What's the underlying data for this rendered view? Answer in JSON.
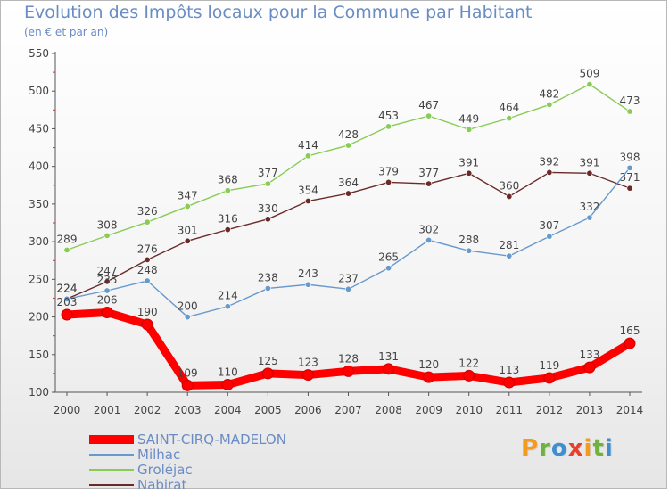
{
  "title": "Evolution des Impôts locaux pour la Commune par Habitant",
  "subtitle": "(en € et par an)",
  "chart_data": {
    "type": "line",
    "title": "Evolution des Impôts locaux pour la Commune par Habitant",
    "subtitle": "(en € et par an)",
    "x": [
      "2000",
      "2001",
      "2002",
      "2003",
      "2004",
      "2005",
      "2006",
      "2007",
      "2008",
      "2009",
      "2010",
      "2011",
      "2012",
      "2013",
      "2014"
    ],
    "ylim": [
      100,
      550
    ],
    "yticks": [
      100,
      150,
      200,
      250,
      300,
      350,
      400,
      450,
      500,
      550
    ],
    "grid": false,
    "legend": "bottom-left",
    "series": [
      {
        "name": "SAINT-CIRQ-MADELON",
        "color": "#ff0000",
        "values": [
          203,
          206,
          190,
          109,
          110,
          125,
          123,
          128,
          131,
          120,
          122,
          113,
          119,
          133,
          165
        ]
      },
      {
        "name": "Milhac",
        "color": "#6699cc",
        "values": [
          224,
          235,
          248,
          200,
          214,
          238,
          243,
          237,
          265,
          302,
          288,
          281,
          307,
          332,
          398
        ]
      },
      {
        "name": "Groléjac",
        "color": "#88cc55",
        "values": [
          289,
          308,
          326,
          347,
          368,
          377,
          414,
          428,
          453,
          467,
          449,
          464,
          482,
          509,
          473
        ]
      },
      {
        "name": "Nabirat",
        "color": "#6b2a2a",
        "values": [
          224,
          247,
          276,
          301,
          316,
          330,
          354,
          364,
          379,
          377,
          391,
          360,
          392,
          391,
          371
        ]
      }
    ]
  },
  "logo": {
    "text": "Proxiti",
    "letters": [
      {
        "ch": "P",
        "color": "#f29b1f"
      },
      {
        "ch": "r",
        "color": "#6fb23f"
      },
      {
        "ch": "o",
        "color": "#3d8fd1"
      },
      {
        "ch": "x",
        "color": "#e8402b"
      },
      {
        "ch": "i",
        "color": "#f29b1f"
      },
      {
        "ch": "t",
        "color": "#6fb23f"
      },
      {
        "ch": "i",
        "color": "#3d8fd1"
      }
    ]
  }
}
